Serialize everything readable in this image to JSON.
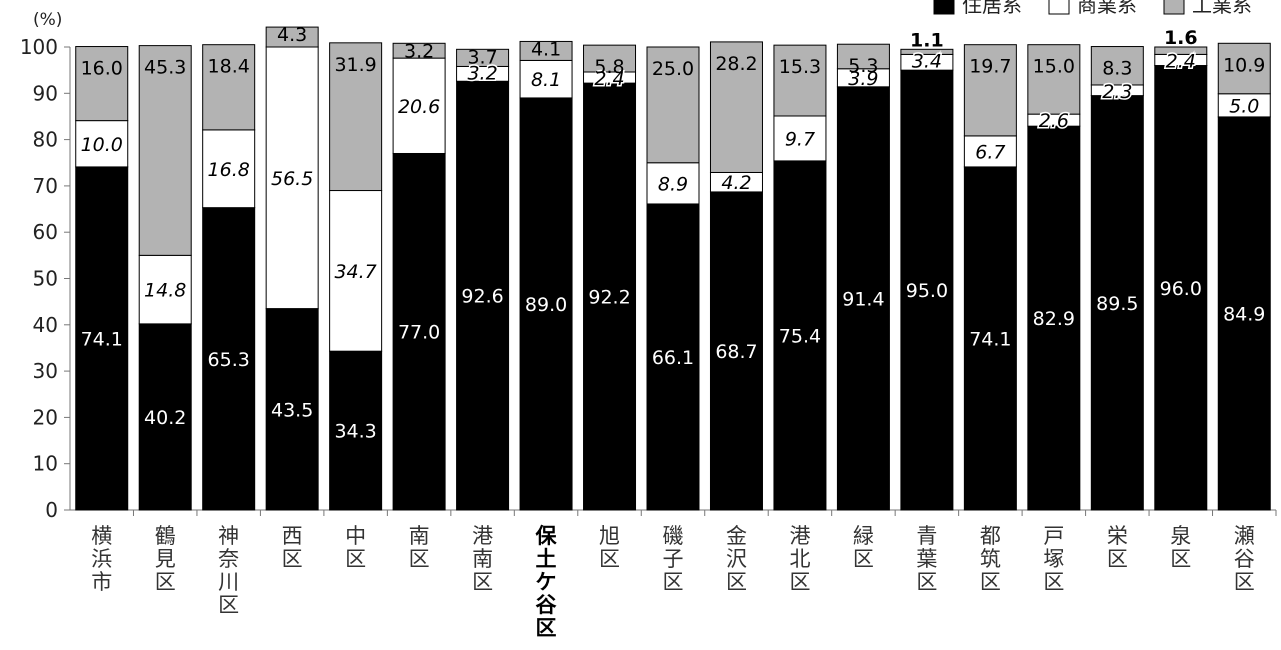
{
  "chart_data": {
    "type": "bar",
    "stacked": true,
    "percent": true,
    "y_unit": "(%)",
    "ylim": [
      0,
      100
    ],
    "yticks": [
      "0",
      "10",
      "20",
      "30",
      "40",
      "50",
      "60",
      "70",
      "80",
      "90",
      "100"
    ],
    "grid": false,
    "legend_position": "top-right",
    "highlight_category": "保土ケ谷区",
    "categories": [
      "横浜市",
      "鶴見区",
      "神奈川区",
      "西区",
      "中区",
      "南区",
      "港南区",
      "保土ケ谷区",
      "旭区",
      "磯子区",
      "金沢区",
      "港北区",
      "緑区",
      "青葉区",
      "都筑区",
      "戸塚区",
      "栄区",
      "泉区",
      "瀬谷区"
    ],
    "series": [
      {
        "name": "住居系",
        "color": "#000000",
        "values": [
          74.1,
          40.2,
          65.3,
          43.5,
          34.3,
          77.0,
          92.6,
          89.0,
          92.2,
          66.1,
          68.7,
          75.4,
          91.4,
          95.0,
          74.1,
          82.9,
          89.5,
          96.0,
          84.9
        ]
      },
      {
        "name": "商業系",
        "color": "#ffffff",
        "values": [
          10.0,
          14.8,
          16.8,
          56.5,
          34.7,
          20.6,
          3.2,
          8.1,
          2.4,
          8.9,
          4.2,
          9.7,
          3.9,
          3.4,
          6.7,
          2.6,
          2.3,
          2.4,
          5.0
        ]
      },
      {
        "name": "工業系",
        "color": "#b3b3b3",
        "values": [
          16.0,
          45.3,
          18.4,
          4.3,
          31.9,
          3.2,
          3.7,
          4.1,
          5.8,
          25.0,
          28.2,
          15.3,
          5.3,
          1.1,
          19.7,
          15.0,
          8.3,
          1.6,
          10.9
        ]
      }
    ]
  }
}
